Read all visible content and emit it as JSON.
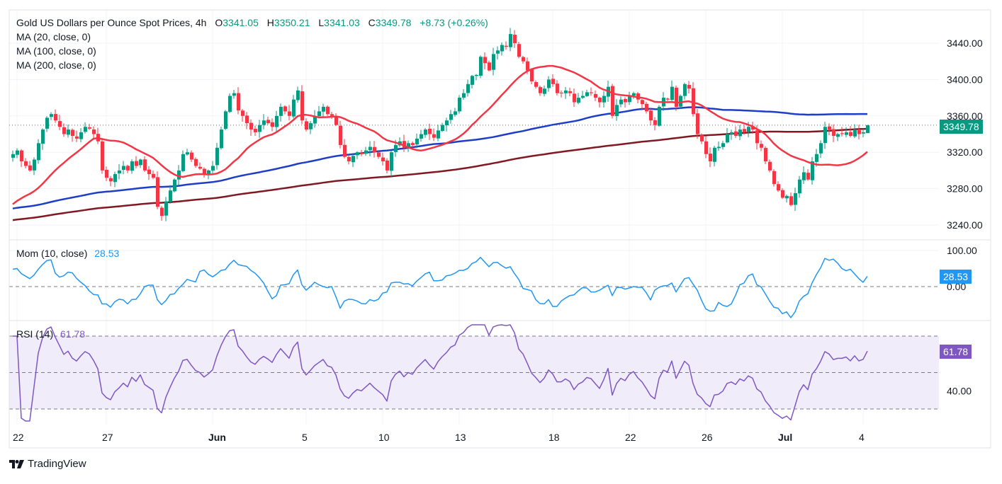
{
  "header": {
    "symbol_title": "Gold US Dollars per Ounce Spot Prices, 4h",
    "open_label": "O",
    "open": "3341.05",
    "high_label": "H",
    "high": "3350.21",
    "low_label": "L",
    "low": "3341.03",
    "close_label": "C",
    "close": "3349.78",
    "change": "+8.73 (+0.26%)"
  },
  "indicators": {
    "ma20": "MA (20, close, 0)",
    "ma100": "MA (100, close, 0)",
    "ma200": "MA (200, close, 0)",
    "mom_label": "Mom (10, close)",
    "mom_value": "28.53",
    "rsi_label": "RSI (14)",
    "rsi_value": "61.78"
  },
  "price_tag": "3349.78",
  "mom_tag": "28.53",
  "rsi_tag": "61.78",
  "footer": {
    "brand": "TradingView"
  },
  "colors": {
    "up": "#089981",
    "down": "#f23645",
    "ma20": "#f23645",
    "ma100": "#1e3ec8",
    "ma200": "#801922",
    "mom": "#2196f3",
    "rsi": "#7e57c2",
    "rsi_band": "#f0ecf9",
    "grid": "#f0f3fa",
    "axis_text": "#131722"
  },
  "chart_data": {
    "type": "candlestick",
    "title": "Gold US Dollars per Ounce Spot Prices, 4h",
    "price_axis": {
      "ticks": [
        3240,
        3280,
        3320,
        3360,
        3400,
        3440
      ],
      "ylim": [
        3222,
        3465
      ]
    },
    "x_ticks": [
      {
        "label": "22",
        "index": 1,
        "bold": false
      },
      {
        "label": "27",
        "index": 22,
        "bold": false
      },
      {
        "label": "Jun",
        "index": 47,
        "bold": true
      },
      {
        "label": "5",
        "index": 69,
        "bold": false
      },
      {
        "label": "10",
        "index": 87,
        "bold": false
      },
      {
        "label": "13",
        "index": 105,
        "bold": false
      },
      {
        "label": "18",
        "index": 127,
        "bold": false
      },
      {
        "label": "22",
        "index": 145,
        "bold": false
      },
      {
        "label": "26",
        "index": 163,
        "bold": false
      },
      {
        "label": "Jul",
        "index": 181,
        "bold": true
      },
      {
        "label": "4",
        "index": 200,
        "bold": false
      }
    ],
    "last_price": 3349.78,
    "closes": [
      3318,
      3322,
      3310,
      3305,
      3300,
      3312,
      3330,
      3345,
      3358,
      3362,
      3355,
      3348,
      3340,
      3345,
      3338,
      3335,
      3342,
      3348,
      3346,
      3340,
      3332,
      3300,
      3292,
      3288,
      3296,
      3300,
      3305,
      3300,
      3310,
      3305,
      3312,
      3300,
      3296,
      3292,
      3260,
      3250,
      3266,
      3278,
      3290,
      3300,
      3318,
      3320,
      3312,
      3305,
      3302,
      3296,
      3300,
      3305,
      3325,
      3345,
      3365,
      3382,
      3385,
      3366,
      3360,
      3352,
      3345,
      3342,
      3350,
      3355,
      3352,
      3348,
      3360,
      3370,
      3365,
      3360,
      3378,
      3388,
      3355,
      3345,
      3352,
      3360,
      3365,
      3370,
      3362,
      3360,
      3350,
      3328,
      3315,
      3310,
      3316,
      3320,
      3318,
      3322,
      3326,
      3320,
      3315,
      3310,
      3300,
      3320,
      3328,
      3332,
      3325,
      3330,
      3328,
      3335,
      3340,
      3345,
      3340,
      3336,
      3344,
      3350,
      3355,
      3362,
      3365,
      3380,
      3385,
      3395,
      3404,
      3405,
      3425,
      3418,
      3410,
      3428,
      3432,
      3438,
      3436,
      3450,
      3440,
      3425,
      3420,
      3410,
      3398,
      3392,
      3385,
      3390,
      3400,
      3395,
      3385,
      3385,
      3388,
      3385,
      3375,
      3380,
      3382,
      3386,
      3385,
      3380,
      3375,
      3382,
      3392,
      3360,
      3372,
      3378,
      3375,
      3382,
      3385,
      3378,
      3373,
      3365,
      3355,
      3350,
      3370,
      3380,
      3378,
      3392,
      3370,
      3382,
      3395,
      3390,
      3362,
      3340,
      3332,
      3318,
      3310,
      3325,
      3326,
      3330,
      3340,
      3342,
      3338,
      3345,
      3342,
      3348,
      3345,
      3330,
      3325,
      3310,
      3300,
      3285,
      3278,
      3270,
      3272,
      3262,
      3275,
      3290,
      3298,
      3290,
      3310,
      3318,
      3330,
      3348,
      3345,
      3338,
      3340,
      3340,
      3342,
      3338,
      3345,
      3340,
      3342,
      3349.78
    ],
    "ma_series": [
      {
        "name": "MA (20, close, 0)",
        "period": 20
      },
      {
        "name": "MA (100, close, 0)",
        "period": 100
      },
      {
        "name": "MA (200, close, 0)",
        "period": 200
      }
    ],
    "momentum": {
      "name": "Mom (10, close)",
      "last": 28.53,
      "ticks": [
        0,
        100
      ]
    },
    "rsi": {
      "name": "RSI (14)",
      "last": 61.78,
      "bands": [
        30,
        50,
        70
      ],
      "ticks": [
        40
      ]
    }
  }
}
